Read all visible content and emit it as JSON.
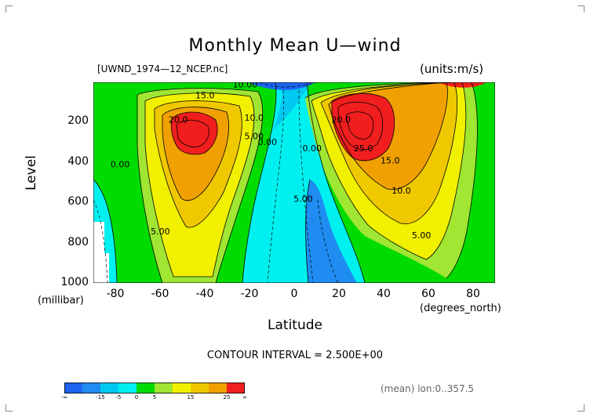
{
  "header": {
    "title": "Monthly Mean U—wind",
    "file_label": "[UWND_1974—12_NCEP.nc]",
    "units_label": "(units:m/s)"
  },
  "footer": {
    "contour_interval": "CONTOUR INTERVAL = 2.500E+00",
    "mean_label": "(mean) lon:0..357.5"
  },
  "colors": {
    "dark_blue": "#1e64f0",
    "blue": "#1e8cf0",
    "light_blue": "#00c8f0",
    "cyan": "#00f0f0",
    "green": "#00dc00",
    "light_green": "#a0e632",
    "yellow": "#f0f000",
    "gold": "#f0c800",
    "orange": "#f0a000",
    "red": "#f01e1e"
  },
  "chart_data": {
    "type": "contour",
    "title": "Monthly Mean U—wind",
    "xlabel": "Latitude",
    "xunit": "(degrees_north)",
    "ylabel": "Level",
    "yunit": "(millibar)",
    "xlim": [
      -90,
      90
    ],
    "ylim": [
      1000,
      10
    ],
    "y_reversed": true,
    "xticks": [
      "-80",
      "-60",
      "-40",
      "-20",
      "0",
      "20",
      "40",
      "60",
      "80"
    ],
    "xtick_values": [
      -80,
      -60,
      -40,
      -20,
      0,
      20,
      40,
      60,
      80
    ],
    "yticks": [
      "200",
      "400",
      "600",
      "800",
      "1000"
    ],
    "ytick_values": [
      200,
      400,
      600,
      800,
      1000
    ],
    "contour_interval": 2.5,
    "contour_labels": [
      {
        "text": "15.0",
        "x": -40,
        "y": 90
      },
      {
        "text": "20.0",
        "x": -52,
        "y": 210
      },
      {
        "text": "10.0",
        "x": -18,
        "y": 200
      },
      {
        "text": "5.00",
        "x": -18,
        "y": 290
      },
      {
        "text": "0.00",
        "x": -12,
        "y": 320
      },
      {
        "text": "10.00",
        "x": -22,
        "y": 35
      },
      {
        "text": "0.00",
        "x": -78,
        "y": 430
      },
      {
        "text": "5.00",
        "x": -60,
        "y": 760
      },
      {
        "text": "0.00",
        "x": 8,
        "y": 350
      },
      {
        "text": "5.00",
        "x": 4,
        "y": 600
      },
      {
        "text": "20.0",
        "x": 21,
        "y": 210
      },
      {
        "text": "25.0",
        "x": 31,
        "y": 350
      },
      {
        "text": "15.0",
        "x": 43,
        "y": 410
      },
      {
        "text": "10.0",
        "x": 48,
        "y": 560
      },
      {
        "text": "5.00",
        "x": 57,
        "y": 780
      }
    ],
    "jets": [
      {
        "hemisphere": "south",
        "lat": -45,
        "level": 250,
        "max": 27.5
      },
      {
        "hemisphere": "north",
        "lat": 32,
        "level": 200,
        "max": 30
      }
    ],
    "colorbar": {
      "ticks": [
        "-∞",
        "-15",
        "-5",
        "0",
        "5",
        "15",
        "25",
        "∞"
      ],
      "colors": [
        "#1e64f0",
        "#1e8cf0",
        "#00c8f0",
        "#00f0f0",
        "#00dc00",
        "#a0e632",
        "#f0f000",
        "#f0c800",
        "#f0a000",
        "#f01e1e"
      ]
    }
  }
}
